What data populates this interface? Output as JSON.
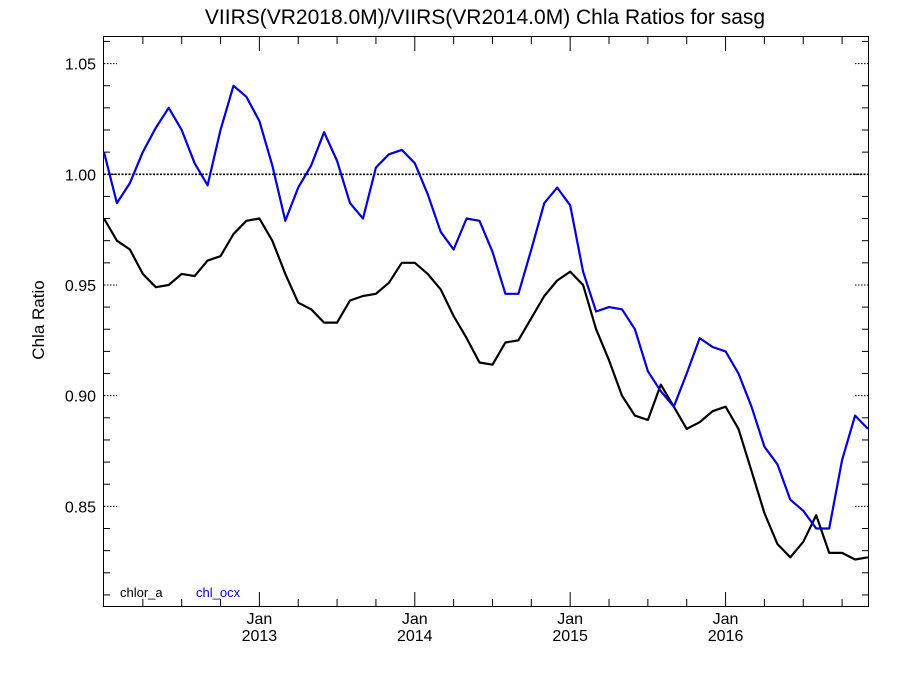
{
  "chart_data": {
    "type": "line",
    "title": "VIIRS(VR2018.0M)/VIIRS(VR2014.0M)  Chla Ratios for sasg",
    "ylabel": "Chla Ratio",
    "xlabel": "",
    "xlim": [
      "2012-01",
      "2016-12"
    ],
    "ylim": [
      0.805,
      1.062
    ],
    "yticks": [
      {
        "value": 0.85,
        "label": "0.85"
      },
      {
        "value": 0.9,
        "label": "0.90"
      },
      {
        "value": 0.95,
        "label": "0.95"
      },
      {
        "value": 1.0,
        "label": "1.00"
      },
      {
        "value": 1.05,
        "label": "1.05"
      }
    ],
    "xticks": [
      {
        "date": "2013-01",
        "line1": "Jan",
        "line2": "2013"
      },
      {
        "date": "2014-01",
        "line1": "Jan",
        "line2": "2014"
      },
      {
        "date": "2015-01",
        "line1": "Jan",
        "line2": "2015"
      },
      {
        "date": "2016-01",
        "line1": "Jan",
        "line2": "2016"
      }
    ],
    "reference_line": 1.0,
    "x": [
      "2012-01",
      "2012-02",
      "2012-03",
      "2012-04",
      "2012-05",
      "2012-06",
      "2012-07",
      "2012-08",
      "2012-09",
      "2012-10",
      "2012-11",
      "2012-12",
      "2013-01",
      "2013-02",
      "2013-03",
      "2013-04",
      "2013-05",
      "2013-06",
      "2013-07",
      "2013-08",
      "2013-09",
      "2013-10",
      "2013-11",
      "2013-12",
      "2014-01",
      "2014-02",
      "2014-03",
      "2014-04",
      "2014-05",
      "2014-06",
      "2014-07",
      "2014-08",
      "2014-09",
      "2014-10",
      "2014-11",
      "2014-12",
      "2015-01",
      "2015-02",
      "2015-03",
      "2015-04",
      "2015-05",
      "2015-06",
      "2015-07",
      "2015-08",
      "2015-09",
      "2015-10",
      "2015-11",
      "2015-12",
      "2016-01",
      "2016-02",
      "2016-03",
      "2016-04",
      "2016-05",
      "2016-06",
      "2016-07",
      "2016-08",
      "2016-09",
      "2016-10",
      "2016-11",
      "2016-12"
    ],
    "series": [
      {
        "name": "chlor_a",
        "color": "#000000",
        "values": [
          0.98,
          0.97,
          0.966,
          0.955,
          0.949,
          0.95,
          0.955,
          0.954,
          0.961,
          0.963,
          0.973,
          0.979,
          0.98,
          0.97,
          0.955,
          0.942,
          0.939,
          0.933,
          0.933,
          0.943,
          0.945,
          0.946,
          0.951,
          0.96,
          0.96,
          0.955,
          0.948,
          0.936,
          0.926,
          0.915,
          0.914,
          0.924,
          0.925,
          0.935,
          0.945,
          0.952,
          0.956,
          0.95,
          0.93,
          0.916,
          0.9,
          0.891,
          0.889,
          0.905,
          0.895,
          0.885,
          0.888,
          0.893,
          0.895,
          0.885,
          0.866,
          0.847,
          0.833,
          0.827,
          0.834,
          0.846,
          0.829,
          0.829,
          0.826,
          0.827
        ]
      },
      {
        "name": "chl_ocx",
        "color": "#0000dd",
        "values": [
          1.01,
          0.987,
          0.996,
          1.01,
          1.021,
          1.03,
          1.02,
          1.005,
          0.995,
          1.02,
          1.04,
          1.035,
          1.024,
          1.004,
          0.979,
          0.994,
          1.004,
          1.019,
          1.006,
          0.987,
          0.98,
          1.003,
          1.009,
          1.011,
          1.005,
          0.991,
          0.974,
          0.966,
          0.98,
          0.979,
          0.965,
          0.946,
          0.946,
          0.966,
          0.987,
          0.994,
          0.986,
          0.956,
          0.938,
          0.94,
          0.939,
          0.93,
          0.911,
          0.902,
          0.895,
          0.91,
          0.926,
          0.922,
          0.92,
          0.91,
          0.895,
          0.877,
          0.869,
          0.853,
          0.848,
          0.84,
          0.84,
          0.871,
          0.891,
          0.885
        ]
      }
    ],
    "legend": {
      "position": "bottom-left"
    },
    "grid": false
  }
}
